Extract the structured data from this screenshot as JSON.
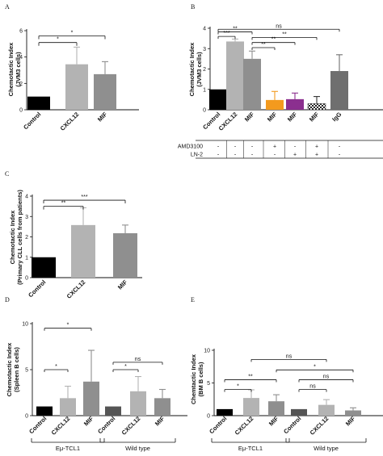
{
  "chart_data": [
    {
      "panel": "A",
      "type": "bar",
      "ylabel": "Chemotactic Index (JVM3 cells)",
      "ylim": [
        0,
        6
      ],
      "yticks": [
        0,
        2,
        4,
        6
      ],
      "categories": [
        "Control",
        "CXCL12",
        "MIF"
      ],
      "values": [
        1.0,
        3.45,
        2.7
      ],
      "errors": [
        0,
        1.3,
        0.95
      ],
      "colors": [
        "#000000",
        "#b3b3b3",
        "#8f8f8f"
      ],
      "significance": [
        {
          "from": 0,
          "to": 1,
          "y": 5.1,
          "label": "*"
        },
        {
          "from": 0,
          "to": 2,
          "y": 5.6,
          "label": "*"
        }
      ]
    },
    {
      "panel": "B",
      "type": "bar",
      "ylabel": "Chemotactic Index (JVM3 cells)",
      "ylim": [
        0,
        4
      ],
      "yticks": [
        0,
        1,
        2,
        3,
        4
      ],
      "categories": [
        "Control",
        "CXCL12",
        "MIF",
        "MIF",
        "MIF",
        "MIF",
        "IgG"
      ],
      "values": [
        1.0,
        3.35,
        2.5,
        0.48,
        0.52,
        0.3,
        1.9
      ],
      "errors": [
        0,
        0.12,
        0.38,
        0.42,
        0.3,
        0.35,
        0.8
      ],
      "colors": [
        "#000000",
        "#b3b3b3",
        "#8f8f8f",
        "#f39a1e",
        "#8b2f8f",
        "pattern",
        "#6f6f6f"
      ],
      "table": {
        "rows": [
          {
            "label": "AMD3100",
            "values": [
              "-",
              "-",
              "-",
              "+",
              "-",
              "+",
              "-"
            ]
          },
          {
            "label": "LN-2",
            "values": [
              "-",
              "-",
              "-",
              "-",
              "+",
              "+",
              "-"
            ]
          }
        ]
      },
      "significance": [
        {
          "from": 0,
          "to": 6,
          "y": 3.95,
          "label": "ns"
        },
        {
          "from": 0,
          "to": 2,
          "y": 3.82,
          "label": "**"
        },
        {
          "from": 0,
          "to": 1,
          "y": 3.6,
          "label": "***"
        },
        {
          "from": 2,
          "to": 5,
          "y": 3.55,
          "label": "**"
        },
        {
          "from": 2,
          "to": 4,
          "y": 3.3,
          "label": "**"
        },
        {
          "from": 2,
          "to": 3,
          "y": 3.05,
          "label": "**"
        }
      ]
    },
    {
      "panel": "C",
      "type": "bar",
      "ylabel": "Chemotactic Index (Primary CLL cells from patients)",
      "ylim": [
        0,
        4
      ],
      "yticks": [
        0,
        1,
        2,
        3,
        4
      ],
      "categories": [
        "Control",
        "CXCL12",
        "MIF"
      ],
      "values": [
        1.0,
        2.58,
        2.18
      ],
      "errors": [
        0,
        0.85,
        0.4
      ],
      "colors": [
        "#000000",
        "#b3b3b3",
        "#8f8f8f"
      ],
      "significance": [
        {
          "from": 0,
          "to": 1,
          "y": 3.5,
          "label": "**"
        },
        {
          "from": 0,
          "to": 2,
          "y": 3.8,
          "label": "***"
        }
      ]
    },
    {
      "panel": "D",
      "type": "bar",
      "ylabel": "Chemotactic Index (Spleen B cells)",
      "ylim": [
        0,
        10
      ],
      "yticks": [
        0,
        5,
        10
      ],
      "categories": [
        "Control",
        "CXCL12",
        "MIF",
        "Control",
        "CXCL12",
        "MIF"
      ],
      "values": [
        1.0,
        1.9,
        3.7,
        1.0,
        2.65,
        1.9
      ],
      "errors": [
        0,
        1.3,
        3.4,
        0,
        1.6,
        0.95
      ],
      "colors": [
        "#000000",
        "#b3b3b3",
        "#8f8f8f",
        "#555555",
        "#b3b3b3",
        "#8f8f8f"
      ],
      "groups": [
        {
          "label": "Eμ-TCL1",
          "from": 0,
          "to": 2
        },
        {
          "label": "Wild type",
          "from": 3,
          "to": 5
        }
      ],
      "significance": [
        {
          "from": 0,
          "to": 1,
          "y": 5.0,
          "label": "*"
        },
        {
          "from": 0,
          "to": 2,
          "y": 9.5,
          "label": "*"
        },
        {
          "from": 3,
          "to": 4,
          "y": 5.0,
          "label": "*"
        },
        {
          "from": 3,
          "to": 5,
          "y": 5.8,
          "label": "ns"
        }
      ]
    },
    {
      "panel": "E",
      "type": "bar",
      "ylabel": "Chemtactic Index (BM B cells)",
      "ylim": [
        0,
        10
      ],
      "yticks": [
        0,
        5,
        10
      ],
      "categories": [
        "Control",
        "CXCL12",
        "MIF",
        "Control",
        "CXCL12",
        "MIF"
      ],
      "values": [
        1.0,
        2.7,
        2.2,
        1.0,
        1.65,
        0.8
      ],
      "errors": [
        0,
        1.25,
        1.0,
        0,
        0.8,
        0.4
      ],
      "colors": [
        "#000000",
        "#b3b3b3",
        "#8f8f8f",
        "#555555",
        "#b3b3b3",
        "#8f8f8f"
      ],
      "groups": [
        {
          "label": "Eμ-TCL1",
          "from": 0,
          "to": 2
        },
        {
          "label": "Wild type",
          "from": 3,
          "to": 5
        }
      ],
      "significance": [
        {
          "from": 0,
          "to": 1,
          "y": 4.0,
          "label": "*"
        },
        {
          "from": 0,
          "to": 2,
          "y": 5.5,
          "label": "**"
        },
        {
          "from": 1,
          "to": 4,
          "y": 8.6,
          "label": "ns"
        },
        {
          "from": 2,
          "to": 5,
          "y": 7.0,
          "label": "*"
        },
        {
          "from": 3,
          "to": 4,
          "y": 4.0,
          "label": "ns"
        },
        {
          "from": 3,
          "to": 5,
          "y": 5.5,
          "label": "ns"
        }
      ]
    }
  ]
}
